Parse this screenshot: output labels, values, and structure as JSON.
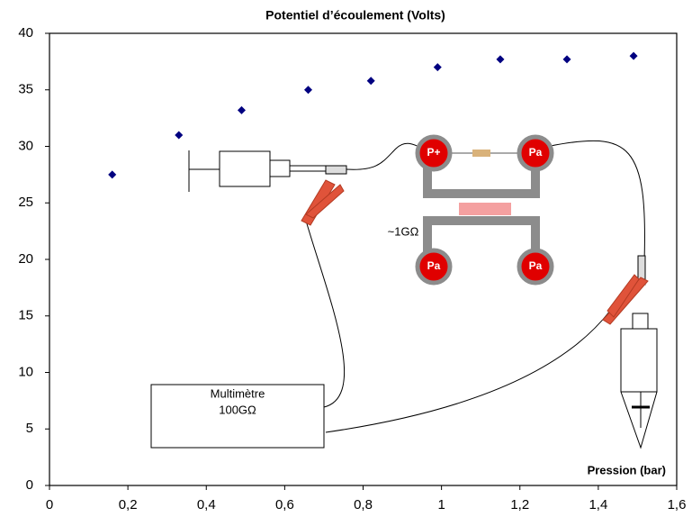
{
  "chart_data": {
    "type": "scatter",
    "title": "Potentiel d’écoulement (Volts)",
    "x_label": "Pression (bar)",
    "x": [
      0.16,
      0.33,
      0.49,
      0.66,
      0.82,
      0.99,
      1.15,
      1.32,
      1.49
    ],
    "series": [
      {
        "color": "#000080",
        "values": [
          27.5,
          31.0,
          33.2,
          35.0,
          35.8,
          37.0,
          37.7,
          37.7,
          38.0
        ]
      }
    ],
    "xlim": [
      0,
      1.6
    ],
    "ylim": [
      0,
      40
    ],
    "xticks": [
      0,
      {
        "value": 0.2,
        "label": "0,2"
      },
      {
        "value": 0.4,
        "label": "0,4"
      },
      {
        "value": 0.6,
        "label": "0,6"
      },
      {
        "value": 0.8,
        "label": "0,8"
      },
      1,
      {
        "value": 1.2,
        "label": "1,2"
      },
      {
        "value": 1.4,
        "label": "1,4"
      },
      {
        "value": 1.6,
        "label": "1,6"
      }
    ],
    "yticks": [
      0,
      5,
      10,
      15,
      20,
      25,
      30,
      35,
      40
    ],
    "grid": false,
    "annotations": [
      "Multimètre",
      "100GΩ",
      "~1GΩ",
      "P+",
      "Pa",
      "Pa",
      "Pa"
    ]
  }
}
